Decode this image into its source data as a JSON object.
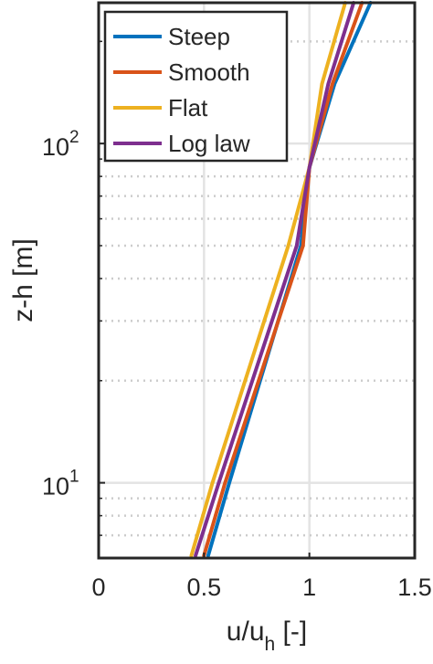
{
  "chart_data": {
    "type": "line",
    "title": "",
    "xlabel": "u/u",
    "xlabel_sub": "h",
    "xlabel_suffix": " [-]",
    "ylabel": "z-h [m]",
    "xlim": [
      0,
      1.5
    ],
    "ylim": [
      6,
      260
    ],
    "yscale": "log",
    "x_ticks": [
      0,
      0.5,
      1,
      1.5
    ],
    "x_tick_labels": [
      "0",
      "0.5",
      "1",
      "1.5"
    ],
    "y_ticks": [
      10,
      100
    ],
    "y_tick_base": "10",
    "y_tick_exponents": [
      "1",
      "2"
    ],
    "grid": true,
    "legend_position": "top-left",
    "series": [
      {
        "name": "Steep",
        "color": "#0072BD",
        "x": [
          0.52,
          0.62,
          0.96,
          1.0,
          1.12,
          1.29
        ],
        "y": [
          6.1,
          10,
          50,
          85,
          150,
          260
        ]
      },
      {
        "name": "Smooth",
        "color": "#D95319",
        "x": [
          0.5,
          0.6,
          0.97,
          1.0,
          1.11,
          1.25
        ],
        "y": [
          6.1,
          10,
          50,
          85,
          150,
          260
        ]
      },
      {
        "name": "Flat",
        "color": "#EDB120",
        "x": [
          0.44,
          0.54,
          0.9,
          1.0,
          1.06,
          1.17
        ],
        "y": [
          6.1,
          10,
          50,
          85,
          150,
          260
        ]
      },
      {
        "name": "Log law",
        "color": "#7E2F8E",
        "x": [
          0.46,
          0.57,
          0.94,
          1.0,
          1.09,
          1.21
        ],
        "y": [
          6.1,
          10,
          50,
          85,
          150,
          260
        ]
      }
    ]
  }
}
